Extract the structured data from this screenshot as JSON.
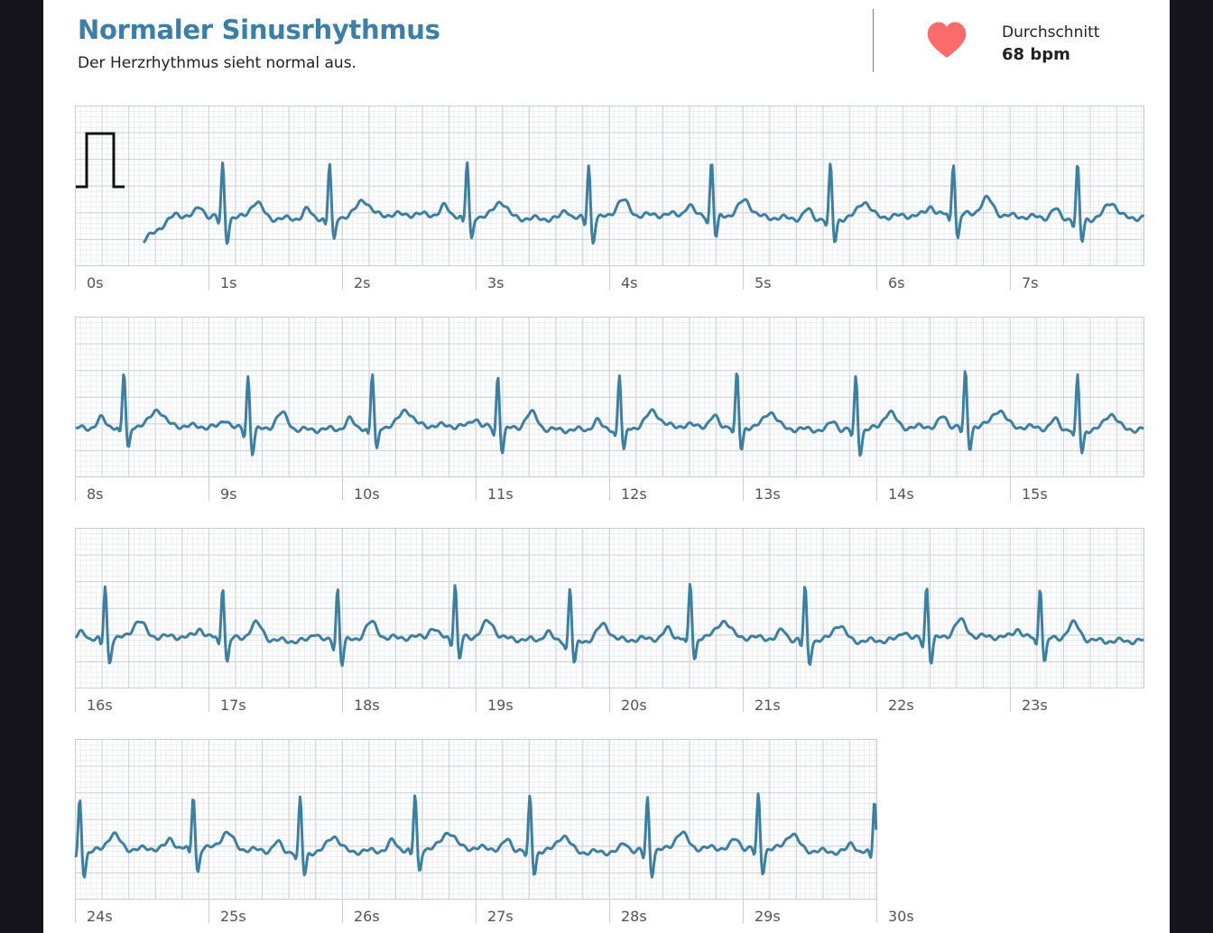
{
  "header": {
    "title": "Normaler Sinusrhythmus",
    "subtitle": "Der Herzrhythmus sieht normal aus."
  },
  "summary": {
    "label": "Durchschnitt",
    "value": "68 bpm",
    "icon": "heart-icon",
    "icon_color": "#fc6b6b"
  },
  "colors": {
    "trace": "#3b80a3",
    "calibration_pulse": "#111111",
    "title": "#3a7fa8"
  },
  "ecg": {
    "duration_seconds": 30,
    "average_bpm": 68,
    "strips": [
      {
        "start_s": 0,
        "end_s": 8,
        "calibration_pulse": true,
        "tick_labels": [
          "0s",
          "1s",
          "2s",
          "3s",
          "4s",
          "5s",
          "6s",
          "7s"
        ],
        "r_peaks_s": [
          1.1,
          1.9,
          2.93,
          3.84,
          4.76,
          5.65,
          6.57,
          7.5
        ]
      },
      {
        "start_s": 8,
        "end_s": 16,
        "calibration_pulse": false,
        "tick_labels": [
          "8s",
          "9s",
          "10s",
          "11s",
          "12s",
          "13s",
          "14s",
          "15s"
        ],
        "r_peaks_s": [
          8.36,
          9.29,
          10.22,
          11.16,
          12.07,
          12.95,
          13.84,
          14.66,
          15.5
        ]
      },
      {
        "start_s": 16,
        "end_s": 24,
        "calibration_pulse": false,
        "tick_labels": [
          "16s",
          "17s",
          "18s",
          "19s",
          "20s",
          "21s",
          "22s",
          "23s"
        ],
        "r_peaks_s": [
          16.22,
          17.1,
          17.96,
          18.84,
          19.7,
          20.6,
          21.46,
          22.37,
          23.22
        ]
      },
      {
        "start_s": 24,
        "end_s": 30,
        "calibration_pulse": false,
        "tick_labels": [
          "24s",
          "25s",
          "26s",
          "27s",
          "28s",
          "29s",
          "30s"
        ],
        "r_peaks_s": [
          24.03,
          24.88,
          25.68,
          26.54,
          27.4,
          28.28,
          29.11,
          29.98
        ]
      }
    ]
  }
}
